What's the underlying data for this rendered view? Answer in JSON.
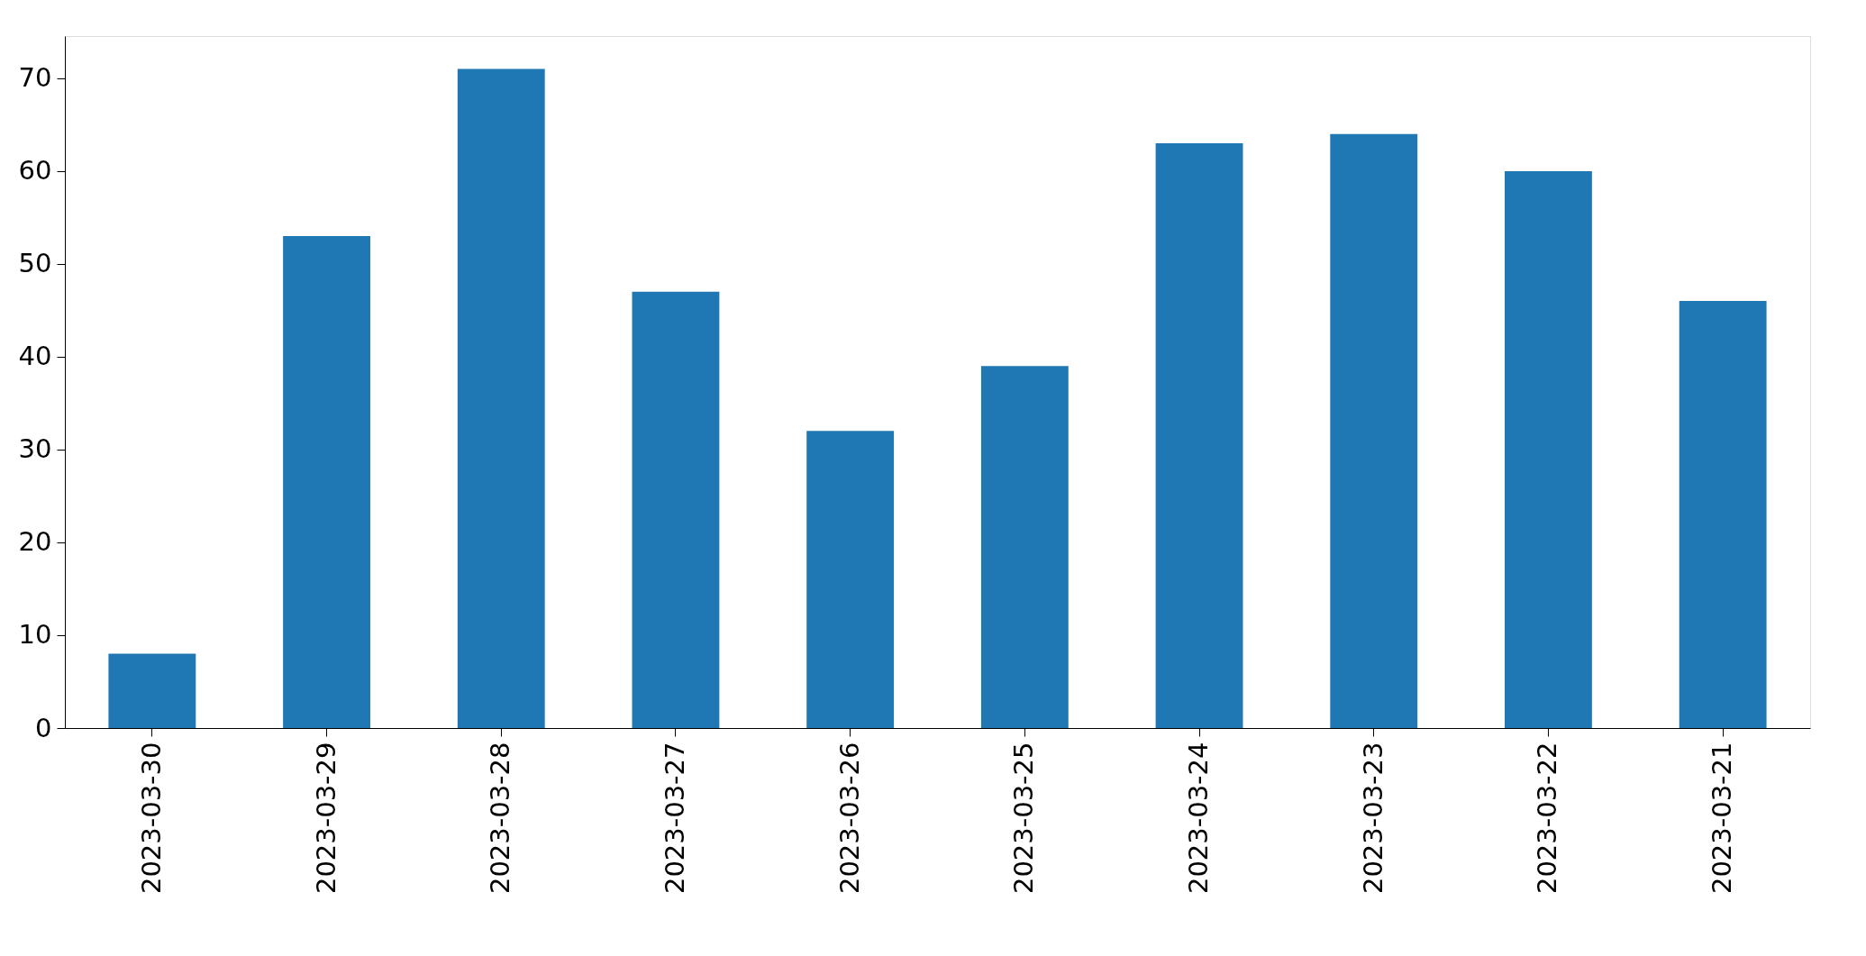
{
  "chart_data": {
    "type": "bar",
    "categories": [
      "2023-03-30",
      "2023-03-29",
      "2023-03-28",
      "2023-03-27",
      "2023-03-26",
      "2023-03-25",
      "2023-03-24",
      "2023-03-23",
      "2023-03-22",
      "2023-03-21"
    ],
    "values": [
      8,
      53,
      71,
      47,
      32,
      39,
      63,
      64,
      60,
      46
    ],
    "color": "#1f77b4",
    "ylim": [
      0,
      74.55
    ],
    "yticks": [
      0,
      10,
      20,
      30,
      40,
      50,
      60,
      70
    ],
    "grid": false
  }
}
